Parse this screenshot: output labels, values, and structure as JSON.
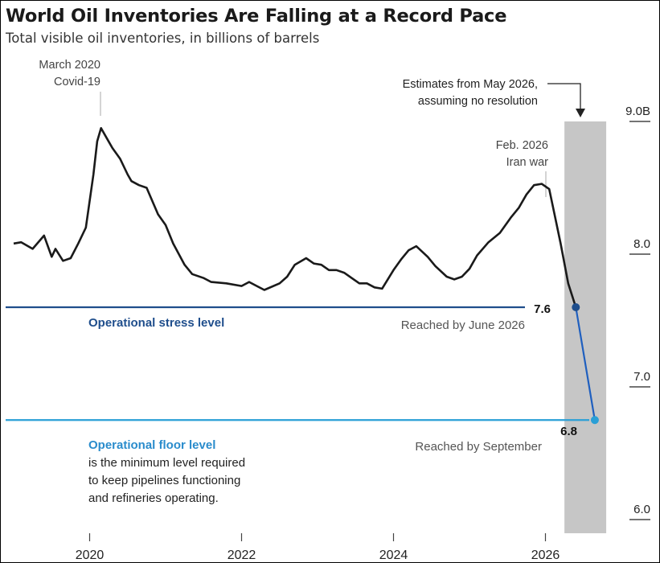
{
  "title": "World Oil Inventories Are Falling at a Record Pace",
  "subtitle": "Total visible oil inventories, in billions of barrels",
  "annotations": {
    "covid_line1": "March 2020",
    "covid_line2": "Covid-19",
    "iran_line1": "Feb. 2026",
    "iran_line2": "Iran war",
    "estimate_line1": "Estimates from May 2026,",
    "estimate_line2": "assuming no resolution",
    "stress_label": "Operational stress level",
    "stress_reached": "Reached by June 2026",
    "stress_value": "7.6",
    "floor_label": "Operational floor level",
    "floor_desc1": "is the minimum level required",
    "floor_desc2": "to keep pipelines functioning",
    "floor_desc3": "and refineries operating.",
    "floor_reached": "Reached by September",
    "floor_value": "6.8"
  },
  "colors": {
    "line": "#1a1a1a",
    "estimate_line": "#1f5fbf",
    "stress": "#1f4e8c",
    "floor": "#2a9fd6",
    "shade": "#c6c6c6",
    "axis_text": "#222222"
  },
  "chart_data": {
    "type": "line",
    "xlabel": "",
    "ylabel": "",
    "ylim": [
      6.0,
      9.0
    ],
    "xlim": [
      2019.0,
      2027.2
    ],
    "grid": false,
    "y_ticks": [
      {
        "value": 9.0,
        "label": "9.0B"
      },
      {
        "value": 8.0,
        "label": "8.0"
      },
      {
        "value": 7.0,
        "label": "7.0"
      },
      {
        "value": 6.0,
        "label": "6.0"
      }
    ],
    "x_ticks": [
      {
        "value": 2020,
        "label": "2020"
      },
      {
        "value": 2022,
        "label": "2022"
      },
      {
        "value": 2024,
        "label": "2024"
      },
      {
        "value": 2026,
        "label": "2026"
      }
    ],
    "reference_lines": [
      {
        "name": "Operational stress level",
        "value": 7.6
      },
      {
        "name": "Operational floor level",
        "value": 6.75
      }
    ],
    "shaded_range": [
      2026.25,
      2026.8
    ],
    "series": [
      {
        "x": [
          2019.0,
          2019.1,
          2019.25,
          2019.4,
          2019.5,
          2019.55,
          2019.65,
          2019.75,
          2019.85,
          2019.95,
          2020.05,
          2020.1,
          2020.15,
          2020.25,
          2020.3,
          2020.4,
          2020.5,
          2020.55,
          2020.65,
          2020.75,
          2020.9,
          2021.0,
          2021.1,
          2021.25,
          2021.35,
          2021.5,
          2021.6,
          2021.8,
          2022.0,
          2022.1,
          2022.2,
          2022.3,
          2022.5,
          2022.6,
          2022.7,
          2022.85,
          2022.95,
          2023.05,
          2023.15,
          2023.25,
          2023.35,
          2023.45,
          2023.55,
          2023.65,
          2023.75,
          2023.85,
          2024.0,
          2024.1,
          2024.2,
          2024.3,
          2024.45,
          2024.55,
          2024.7,
          2024.8,
          2024.9,
          2025.0,
          2025.1,
          2025.25,
          2025.4,
          2025.55,
          2025.65,
          2025.75,
          2025.85,
          2025.95,
          2026.05,
          2026.12,
          2026.2,
          2026.3,
          2026.4
        ],
        "y": [
          8.08,
          8.09,
          8.04,
          8.14,
          7.98,
          8.04,
          7.95,
          7.97,
          8.08,
          8.2,
          8.6,
          8.85,
          8.95,
          8.85,
          8.8,
          8.72,
          8.6,
          8.55,
          8.52,
          8.5,
          8.3,
          8.22,
          8.08,
          7.92,
          7.85,
          7.82,
          7.79,
          7.78,
          7.76,
          7.79,
          7.76,
          7.73,
          7.78,
          7.83,
          7.92,
          7.97,
          7.93,
          7.92,
          7.88,
          7.88,
          7.86,
          7.82,
          7.78,
          7.78,
          7.75,
          7.74,
          7.88,
          7.96,
          8.03,
          8.06,
          7.98,
          7.91,
          7.83,
          7.81,
          7.83,
          7.89,
          7.99,
          8.09,
          8.16,
          8.28,
          8.35,
          8.45,
          8.52,
          8.53,
          8.49,
          8.3,
          8.08,
          7.78,
          7.6
        ]
      },
      {
        "x": [
          2026.4,
          2026.65
        ],
        "y": [
          7.6,
          6.75
        ]
      }
    ]
  }
}
